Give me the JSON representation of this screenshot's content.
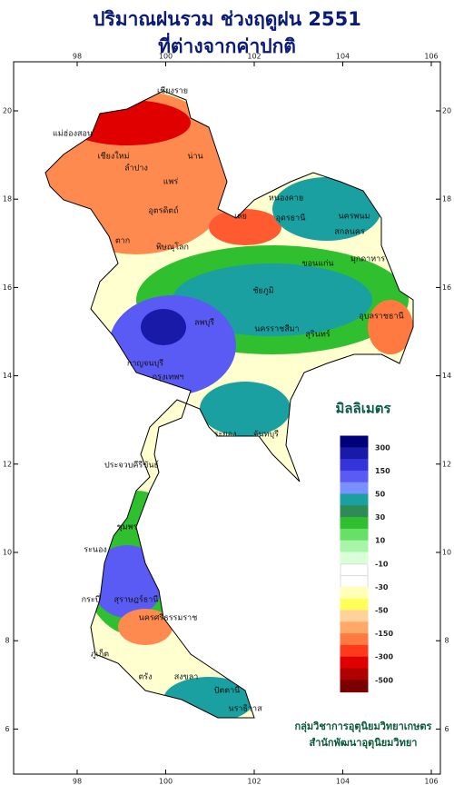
{
  "title": {
    "line1": "ปริมาณฝนรวม ช่วงฤดูฝน 2551",
    "line2": "ที่ต่างจากค่าปกติ"
  },
  "map": {
    "lon_ticks": [
      98,
      100,
      102,
      104,
      106
    ],
    "lat_ticks": [
      20,
      18,
      16,
      14,
      12,
      10,
      8,
      6
    ],
    "places": [
      "เชียงราย",
      "แม่ฮ่องสอน",
      "เชียงใหม่",
      "น่าน",
      "ลำปาง",
      "แพร่",
      "อุตรดิตถ์",
      "ตาก",
      "พิษณุโลก",
      "เลย",
      "หนองคาย",
      "อุดรธานี",
      "นครพนม",
      "สกลนคร",
      "ขอนแก่น",
      "มุกดาหาร",
      "ชัยภูมิ",
      "นครราชสีมา",
      "อุบลราชธานี",
      "สุรินทร์",
      "ลพบุรี",
      "กาญจนบุรี",
      "กรุงเทพฯ",
      "ระยอง",
      "จันทบุรี",
      "ประจวบคีรีขันธ์",
      "ชุมพร",
      "ระนอง",
      "สุราษฎร์ธานี",
      "กระบี่",
      "ภูเก็ต",
      "นครศรีธรรมราช",
      "ตรัง",
      "สงขลา",
      "ปัตตานี",
      "นราธิวาส"
    ]
  },
  "legend": {
    "title": "มิลลิเมตร",
    "colors": [
      "#00007a",
      "#1a1aa8",
      "#3434d8",
      "#5a5af5",
      "#7a90ff",
      "#1aa0a0",
      "#2e8b57",
      "#2fbf2f",
      "#66e066",
      "#a8f5a8",
      "#d8ffd8",
      "#ffffff",
      "#ffffff",
      "#ffffb8",
      "#ffff5a",
      "#ffd29a",
      "#ffa868",
      "#ff7a40",
      "#ff3a1a",
      "#e00000",
      "#b00000",
      "#7a0000"
    ],
    "labels": [
      "300",
      "150",
      "50",
      "30",
      "10",
      "-10",
      "-30",
      "-50",
      "-150",
      "-300",
      "-500"
    ]
  },
  "credit": {
    "line1": "กลุ่มวิชาการอุตุนิยมวิทยาเกษตร",
    "line2": "สำนักพัฒนาอุตุนิยมวิทยา"
  }
}
